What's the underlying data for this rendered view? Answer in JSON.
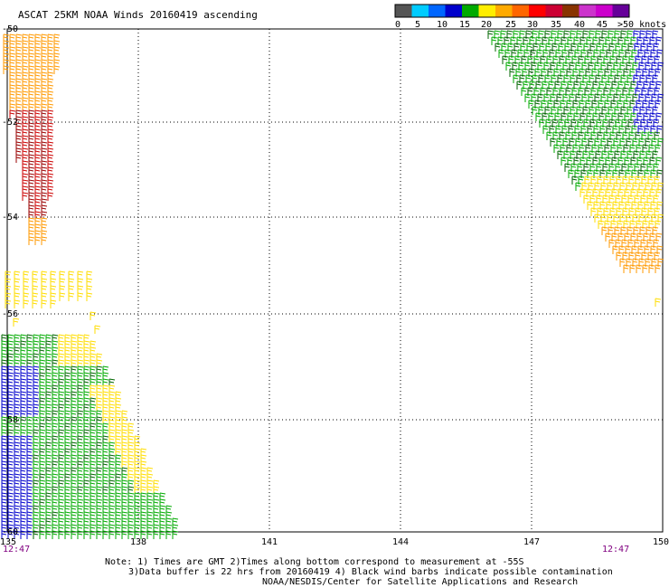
{
  "title": "ASCAT 25KM NOAA Winds 20160419 ascending",
  "legend": {
    "ticks": [
      "0",
      "5",
      "10",
      "15",
      "20",
      "25",
      "30",
      "35",
      "40",
      "45",
      ">50 knots"
    ],
    "colors": [
      "#555555",
      "#00ccff",
      "#0066ff",
      "#0000cc",
      "#00aa00",
      "#ffee00",
      "#ffaa00",
      "#ff6600",
      "#ff0000",
      "#cc0033",
      "#883300",
      "#cc33cc",
      "#cc00cc",
      "#660099"
    ]
  },
  "map": {
    "lon_labels": [
      "135",
      "138",
      "141",
      "144",
      "147",
      "150"
    ],
    "lat_labels": [
      "-50",
      "-52",
      "-54",
      "-56",
      "-58",
      "-60"
    ],
    "time_left": "12:47",
    "time_right": "12:47"
  },
  "notes": {
    "line1": "Note: 1) Times are GMT 2)Times along bottom correspond to measurement at -55S",
    "line2": "3)Data buffer is 22 hrs from 20160419 4) Black wind barbs indicate possible contamination",
    "line3": "NOAA/NESDIS/Center for Satellite Applications and Research"
  }
}
